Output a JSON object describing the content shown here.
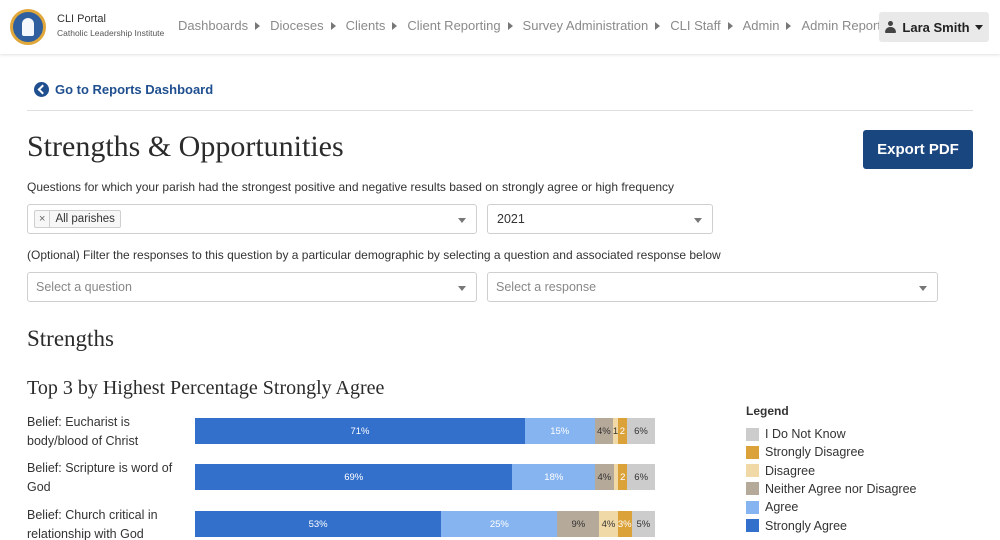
{
  "header": {
    "brand_title": "CLI Portal",
    "brand_subtitle": "Catholic Leadership Institute",
    "nav": [
      "Dashboards",
      "Dioceses",
      "Clients",
      "Client Reporting",
      "Survey Administration",
      "CLI Staff",
      "Admin",
      "Admin Reporting"
    ],
    "user_name": "Lara Smith"
  },
  "back_link": "Go to Reports Dashboard",
  "page_title": "Strengths & Opportunities",
  "export_label": "Export PDF",
  "description": "Questions for which your parish had the strongest positive and negative results based on strongly agree or high frequency",
  "filters": {
    "parish_chip": "All parishes",
    "chip_remove": "×",
    "year": "2021",
    "optional_text": "(Optional) Filter the responses to this question by a particular demographic by selecting a question and associated response below",
    "question_placeholder": "Select a question",
    "response_placeholder": "Select a response"
  },
  "section_title": "Strengths",
  "chart_title": "Top 3 by Highest Percentage Strongly Agree",
  "legend_title": "Legend",
  "colors": {
    "strongly_agree": "#3370cc",
    "agree": "#86b4f0",
    "neither": "#b5a999",
    "disagree": "#f0d9a6",
    "strongly_disagree": "#dca23a",
    "dont_know": "#cccccc"
  },
  "chart_data": {
    "type": "bar",
    "orientation": "horizontal-stacked",
    "categories": [
      "Belief: Eucharist is body/blood of Christ",
      "Belief: Scripture is word of God",
      "Belief: Church critical in relationship with God"
    ],
    "series": [
      {
        "name": "Strongly Agree",
        "values": [
          71,
          69,
          53
        ],
        "labels": [
          "71%",
          "69%",
          "53%"
        ]
      },
      {
        "name": "Agree",
        "values": [
          15,
          18,
          25
        ],
        "labels": [
          "15%",
          "18%",
          "25%"
        ]
      },
      {
        "name": "Neither Agree nor Disagree",
        "values": [
          4,
          4,
          9
        ],
        "labels": [
          "4%",
          "4%",
          "9%"
        ]
      },
      {
        "name": "Disagree",
        "values": [
          1,
          1,
          4
        ],
        "labels": [
          "1",
          "",
          "4%"
        ]
      },
      {
        "name": "Strongly Disagree",
        "values": [
          2,
          2,
          3
        ],
        "labels": [
          "2",
          "2",
          "3%"
        ]
      },
      {
        "name": "I Do Not Know",
        "values": [
          6,
          6,
          5
        ],
        "labels": [
          "6%",
          "6%",
          "5%"
        ]
      }
    ],
    "legend": [
      "I Do Not Know",
      "Strongly Disagree",
      "Disagree",
      "Neither Agree nor Disagree",
      "Agree",
      "Strongly Agree"
    ],
    "legend_placement": "right"
  }
}
